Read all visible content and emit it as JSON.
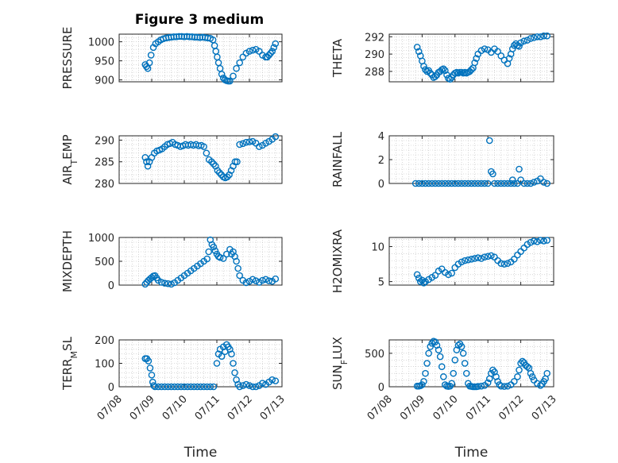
{
  "figure_title": "Figure 3 medium",
  "marker_color": "#0072BD",
  "chart_data": [
    {
      "type": "scatter",
      "id": "pressure",
      "title": "Figure 3 medium",
      "ylabel": "PRESSURE",
      "ylabel_parts": [
        {
          "t": "PRESSURE",
          "s": 0
        }
      ],
      "ylim": [
        895,
        1020
      ],
      "yticks": [
        900,
        950,
        1000
      ],
      "ytick_labels": [
        "900",
        "950",
        "1000"
      ],
      "xlim": [
        0,
        5
      ],
      "xtick_labels": [],
      "xlabel": "",
      "grid": true,
      "x": [
        0.8,
        0.84,
        0.88,
        0.93,
        0.98,
        1.05,
        1.12,
        1.2,
        1.28,
        1.36,
        1.44,
        1.52,
        1.6,
        1.68,
        1.76,
        1.84,
        1.92,
        2.0,
        2.08,
        2.16,
        2.24,
        2.32,
        2.4,
        2.48,
        2.56,
        2.64,
        2.72,
        2.8,
        2.88,
        2.93,
        2.97,
        3.01,
        3.05,
        3.1,
        3.15,
        3.2,
        3.25,
        3.3,
        3.35,
        3.4,
        3.5,
        3.6,
        3.7,
        3.8,
        3.9,
        4.0,
        4.1,
        4.2,
        4.3,
        4.4,
        4.5,
        4.55,
        4.6,
        4.65,
        4.7,
        4.75,
        4.8
      ],
      "y": [
        940,
        935,
        930,
        945,
        965,
        985,
        995,
        1000,
        1005,
        1008,
        1010,
        1011,
        1012,
        1013,
        1013,
        1014,
        1014,
        1013,
        1014,
        1013,
        1013,
        1012,
        1012,
        1011,
        1012,
        1011,
        1010,
        1009,
        1005,
        990,
        975,
        960,
        945,
        930,
        915,
        905,
        900,
        898,
        897,
        897,
        910,
        930,
        945,
        960,
        970,
        975,
        978,
        980,
        975,
        965,
        960,
        960,
        965,
        970,
        975,
        985,
        995
      ]
    },
    {
      "type": "scatter",
      "id": "theta",
      "ylabel": "THETA",
      "ylabel_parts": [
        {
          "t": "THETA",
          "s": 0
        }
      ],
      "ylim": [
        286.8,
        292.3
      ],
      "yticks": [
        288,
        290,
        292
      ],
      "ytick_labels": [
        "288",
        "290",
        "292"
      ],
      "xlim": [
        0,
        5
      ],
      "xtick_labels": [],
      "xlabel": "",
      "grid": true,
      "x": [
        0.85,
        0.9,
        0.95,
        1.0,
        1.05,
        1.1,
        1.15,
        1.2,
        1.25,
        1.3,
        1.35,
        1.4,
        1.45,
        1.5,
        1.55,
        1.6,
        1.65,
        1.7,
        1.75,
        1.8,
        1.85,
        1.9,
        1.95,
        2.0,
        2.05,
        2.1,
        2.15,
        2.2,
        2.25,
        2.3,
        2.35,
        2.4,
        2.45,
        2.5,
        2.55,
        2.6,
        2.65,
        2.7,
        2.8,
        2.9,
        3.0,
        3.1,
        3.2,
        3.3,
        3.4,
        3.5,
        3.6,
        3.65,
        3.7,
        3.75,
        3.8,
        3.85,
        3.9,
        3.95,
        4.0,
        4.1,
        4.2,
        4.3,
        4.4,
        4.5,
        4.6,
        4.7,
        4.8
      ],
      "y": [
        290.8,
        290.3,
        289.8,
        289.2,
        288.6,
        288.2,
        288.0,
        288.1,
        287.8,
        287.6,
        287.3,
        287.4,
        287.6,
        287.9,
        288.0,
        288.2,
        288.3,
        288.1,
        287.6,
        287.2,
        287.1,
        287.3,
        287.6,
        287.8,
        287.9,
        287.8,
        287.9,
        287.9,
        287.8,
        287.9,
        287.8,
        287.9,
        288.0,
        288.2,
        288.4,
        289.0,
        289.5,
        290.0,
        290.4,
        290.6,
        290.5,
        290.2,
        290.6,
        290.3,
        289.8,
        289.3,
        288.9,
        289.5,
        290.0,
        290.6,
        291.0,
        291.2,
        291.0,
        290.9,
        291.3,
        291.5,
        291.6,
        291.8,
        291.9,
        292.0,
        292.0,
        292.1,
        292.1
      ]
    },
    {
      "type": "scatter",
      "id": "air_temp",
      "ylabel": "AIR_TEMP",
      "ylabel_parts": [
        {
          "t": "AIR",
          "s": 0
        },
        {
          "t": "T",
          "s": 1
        },
        {
          "t": "EMP",
          "s": 0
        }
      ],
      "ylim": [
        280,
        291
      ],
      "yticks": [
        280,
        285,
        290
      ],
      "ytick_labels": [
        "280",
        "285",
        "290"
      ],
      "xlim": [
        0,
        5
      ],
      "xtick_labels": [],
      "xlabel": "",
      "grid": true,
      "x": [
        0.8,
        0.84,
        0.88,
        0.93,
        1.0,
        1.08,
        1.16,
        1.24,
        1.32,
        1.4,
        1.48,
        1.56,
        1.64,
        1.72,
        1.8,
        1.88,
        1.96,
        2.04,
        2.12,
        2.2,
        2.28,
        2.36,
        2.44,
        2.52,
        2.6,
        2.68,
        2.76,
        2.84,
        2.9,
        2.96,
        3.02,
        3.08,
        3.14,
        3.2,
        3.26,
        3.32,
        3.38,
        3.44,
        3.5,
        3.56,
        3.62,
        3.7,
        3.8,
        3.9,
        4.0,
        4.1,
        4.2,
        4.3,
        4.4,
        4.5,
        4.6,
        4.7,
        4.8
      ],
      "y": [
        286,
        285,
        284,
        285,
        286,
        287,
        287.5,
        287.7,
        288,
        288.5,
        289,
        289.2,
        289.5,
        289,
        288.8,
        288.5,
        288.7,
        289,
        288.8,
        289,
        288.8,
        289,
        288.7,
        288.8,
        288.5,
        287,
        285.5,
        285,
        284.5,
        284,
        283,
        282.5,
        282,
        281.5,
        281.3,
        281.5,
        282,
        283,
        284,
        285,
        285,
        289,
        289.2,
        289.5,
        289.6,
        289.7,
        289.3,
        288.5,
        288.8,
        289.3,
        289.7,
        290.2,
        290.8
      ]
    },
    {
      "type": "scatter",
      "id": "rainfall",
      "ylabel": "RAINFALL",
      "ylabel_parts": [
        {
          "t": "RAINFALL",
          "s": 0
        }
      ],
      "ylim": [
        0,
        4
      ],
      "yticks": [
        0,
        2,
        4
      ],
      "ytick_labels": [
        "0",
        "2",
        "4"
      ],
      "xlim": [
        0,
        5
      ],
      "xtick_labels": [],
      "xlabel": "",
      "grid": true,
      "x": [
        0.8,
        0.9,
        1.0,
        1.1,
        1.2,
        1.3,
        1.4,
        1.5,
        1.6,
        1.7,
        1.8,
        1.9,
        2.0,
        2.1,
        2.2,
        2.3,
        2.4,
        2.5,
        2.6,
        2.7,
        2.8,
        2.9,
        3.0,
        3.05,
        3.1,
        3.15,
        3.2,
        3.3,
        3.4,
        3.5,
        3.6,
        3.7,
        3.75,
        3.8,
        3.9,
        3.95,
        4.0,
        4.1,
        4.2,
        4.3,
        4.4,
        4.5,
        4.6,
        4.7,
        4.8
      ],
      "y": [
        0,
        0,
        0,
        0,
        0,
        0,
        0,
        0,
        0,
        0,
        0,
        0,
        0,
        0,
        0,
        0,
        0,
        0,
        0,
        0,
        0,
        0,
        0,
        3.6,
        1.0,
        0.8,
        0,
        0,
        0,
        0,
        0,
        0,
        0.3,
        0,
        0,
        1.2,
        0.3,
        0,
        0,
        0,
        0.1,
        0.2,
        0.4,
        0.1,
        0
      ]
    },
    {
      "type": "scatter",
      "id": "mixdepth",
      "ylabel": "MIXDEPTH",
      "ylabel_parts": [
        {
          "t": "MIXDEPTH",
          "s": 0
        }
      ],
      "ylim": [
        0,
        1000
      ],
      "yticks": [
        0,
        500,
        1000
      ],
      "ytick_labels": [
        "0",
        "500",
        "1000"
      ],
      "xlim": [
        0,
        5
      ],
      "xtick_labels": [],
      "xlabel": "",
      "grid": true,
      "x": [
        0.8,
        0.85,
        0.9,
        0.95,
        1.0,
        1.05,
        1.1,
        1.15,
        1.2,
        1.3,
        1.4,
        1.5,
        1.6,
        1.7,
        1.8,
        1.9,
        2.0,
        2.1,
        2.2,
        2.3,
        2.4,
        2.5,
        2.6,
        2.7,
        2.75,
        2.8,
        2.85,
        2.9,
        2.95,
        3.0,
        3.05,
        3.1,
        3.2,
        3.3,
        3.4,
        3.45,
        3.5,
        3.55,
        3.6,
        3.65,
        3.7,
        3.8,
        3.9,
        4.0,
        4.1,
        4.2,
        4.3,
        4.4,
        4.5,
        4.6,
        4.7,
        4.8
      ],
      "y": [
        20,
        60,
        100,
        130,
        160,
        190,
        200,
        150,
        100,
        60,
        40,
        30,
        20,
        50,
        100,
        150,
        200,
        250,
        300,
        350,
        400,
        450,
        500,
        550,
        700,
        950,
        850,
        800,
        720,
        650,
        600,
        580,
        560,
        650,
        750,
        650,
        700,
        600,
        500,
        350,
        200,
        100,
        50,
        80,
        120,
        90,
        60,
        100,
        120,
        90,
        80,
        130
      ]
    },
    {
      "type": "scatter",
      "id": "h2omixra",
      "ylabel": "H2OMIXRA",
      "ylabel_parts": [
        {
          "t": "H2OMIXRA",
          "s": 0
        }
      ],
      "ylim": [
        4.5,
        11.3
      ],
      "yticks": [
        5,
        10
      ],
      "ytick_labels": [
        "5",
        "10"
      ],
      "xlim": [
        0,
        5
      ],
      "xtick_labels": [],
      "xlabel": "",
      "grid": true,
      "x": [
        0.85,
        0.9,
        0.95,
        1.0,
        1.05,
        1.1,
        1.2,
        1.3,
        1.4,
        1.5,
        1.6,
        1.7,
        1.8,
        1.9,
        2.0,
        2.1,
        2.2,
        2.3,
        2.4,
        2.5,
        2.6,
        2.7,
        2.8,
        2.9,
        3.0,
        3.1,
        3.2,
        3.3,
        3.4,
        3.5,
        3.6,
        3.7,
        3.8,
        3.9,
        4.0,
        4.1,
        4.2,
        4.3,
        4.4,
        4.5,
        4.6,
        4.7,
        4.8
      ],
      "y": [
        6.0,
        5.5,
        5.0,
        5.2,
        4.8,
        5.0,
        5.3,
        5.6,
        5.9,
        6.5,
        6.8,
        6.3,
        6.0,
        6.2,
        7.0,
        7.5,
        7.8,
        8.0,
        8.1,
        8.2,
        8.3,
        8.4,
        8.3,
        8.5,
        8.6,
        8.7,
        8.5,
        8.0,
        7.6,
        7.5,
        7.6,
        7.8,
        8.2,
        8.8,
        9.3,
        9.8,
        10.3,
        10.6,
        10.8,
        10.7,
        10.9,
        10.8,
        10.9
      ]
    },
    {
      "type": "scatter",
      "id": "terr_msl",
      "ylabel": "TERR_MSL",
      "ylabel_parts": [
        {
          "t": "TERR",
          "s": 0
        },
        {
          "t": "M",
          "s": 1
        },
        {
          "t": "SL",
          "s": 0
        }
      ],
      "ylim": [
        0,
        200
      ],
      "yticks": [
        0,
        100,
        200
      ],
      "ytick_labels": [
        "0",
        "100",
        "200"
      ],
      "xlim": [
        0,
        5
      ],
      "xtick_labels": [
        "07/08",
        "07/09",
        "07/10",
        "07/11",
        "07/12",
        "07/13"
      ],
      "xlabel": "Time",
      "grid": true,
      "x": [
        0.8,
        0.85,
        0.9,
        0.95,
        1.0,
        1.03,
        1.06,
        1.1,
        1.2,
        1.3,
        1.4,
        1.5,
        1.6,
        1.7,
        1.8,
        1.9,
        2.0,
        2.1,
        2.2,
        2.3,
        2.4,
        2.5,
        2.6,
        2.7,
        2.8,
        2.9,
        3.0,
        3.05,
        3.1,
        3.15,
        3.2,
        3.25,
        3.3,
        3.35,
        3.4,
        3.45,
        3.5,
        3.55,
        3.6,
        3.65,
        3.7,
        3.8,
        3.9,
        4.0,
        4.1,
        4.2,
        4.3,
        4.4,
        4.5,
        4.6,
        4.7,
        4.8
      ],
      "y": [
        120,
        120,
        110,
        80,
        50,
        20,
        5,
        0,
        0,
        0,
        0,
        0,
        0,
        0,
        0,
        0,
        0,
        0,
        0,
        0,
        0,
        0,
        0,
        0,
        0,
        0,
        100,
        140,
        160,
        130,
        170,
        150,
        180,
        170,
        160,
        140,
        100,
        60,
        30,
        10,
        0,
        5,
        10,
        5,
        0,
        0,
        5,
        15,
        10,
        20,
        30,
        25
      ]
    },
    {
      "type": "scatter",
      "id": "sun_flux",
      "ylabel": "SUN_FLUX",
      "ylabel_parts": [
        {
          "t": "SUN",
          "s": 0
        },
        {
          "t": "F",
          "s": 1
        },
        {
          "t": "LUX",
          "s": 0
        }
      ],
      "ylim": [
        0,
        700
      ],
      "yticks": [
        0,
        500
      ],
      "ytick_labels": [
        "0",
        "500"
      ],
      "xlim": [
        0,
        5
      ],
      "xtick_labels": [
        "07/08",
        "07/09",
        "07/10",
        "07/11",
        "07/12",
        "07/13"
      ],
      "xlabel": "Time",
      "grid": true,
      "x": [
        0.85,
        0.9,
        0.95,
        1.0,
        1.05,
        1.1,
        1.15,
        1.2,
        1.25,
        1.3,
        1.35,
        1.4,
        1.45,
        1.5,
        1.55,
        1.6,
        1.65,
        1.7,
        1.75,
        1.8,
        1.85,
        1.9,
        1.95,
        2.0,
        2.05,
        2.1,
        2.15,
        2.2,
        2.25,
        2.3,
        2.35,
        2.4,
        2.45,
        2.5,
        2.55,
        2.6,
        2.65,
        2.7,
        2.8,
        2.9,
        3.0,
        3.05,
        3.1,
        3.15,
        3.2,
        3.25,
        3.3,
        3.35,
        3.4,
        3.5,
        3.6,
        3.7,
        3.8,
        3.9,
        3.95,
        4.0,
        4.05,
        4.1,
        4.15,
        4.2,
        4.25,
        4.3,
        4.35,
        4.4,
        4.5,
        4.6,
        4.65,
        4.7,
        4.75,
        4.8
      ],
      "y": [
        10,
        10,
        15,
        30,
        80,
        200,
        350,
        500,
        600,
        650,
        680,
        670,
        620,
        550,
        450,
        300,
        150,
        30,
        10,
        5,
        10,
        50,
        200,
        400,
        550,
        620,
        640,
        600,
        500,
        350,
        200,
        50,
        10,
        5,
        0,
        0,
        0,
        5,
        10,
        20,
        60,
        120,
        200,
        250,
        220,
        150,
        80,
        30,
        10,
        5,
        10,
        30,
        80,
        150,
        250,
        350,
        380,
        360,
        320,
        300,
        280,
        200,
        150,
        100,
        50,
        20,
        40,
        80,
        120,
        200
      ]
    }
  ]
}
